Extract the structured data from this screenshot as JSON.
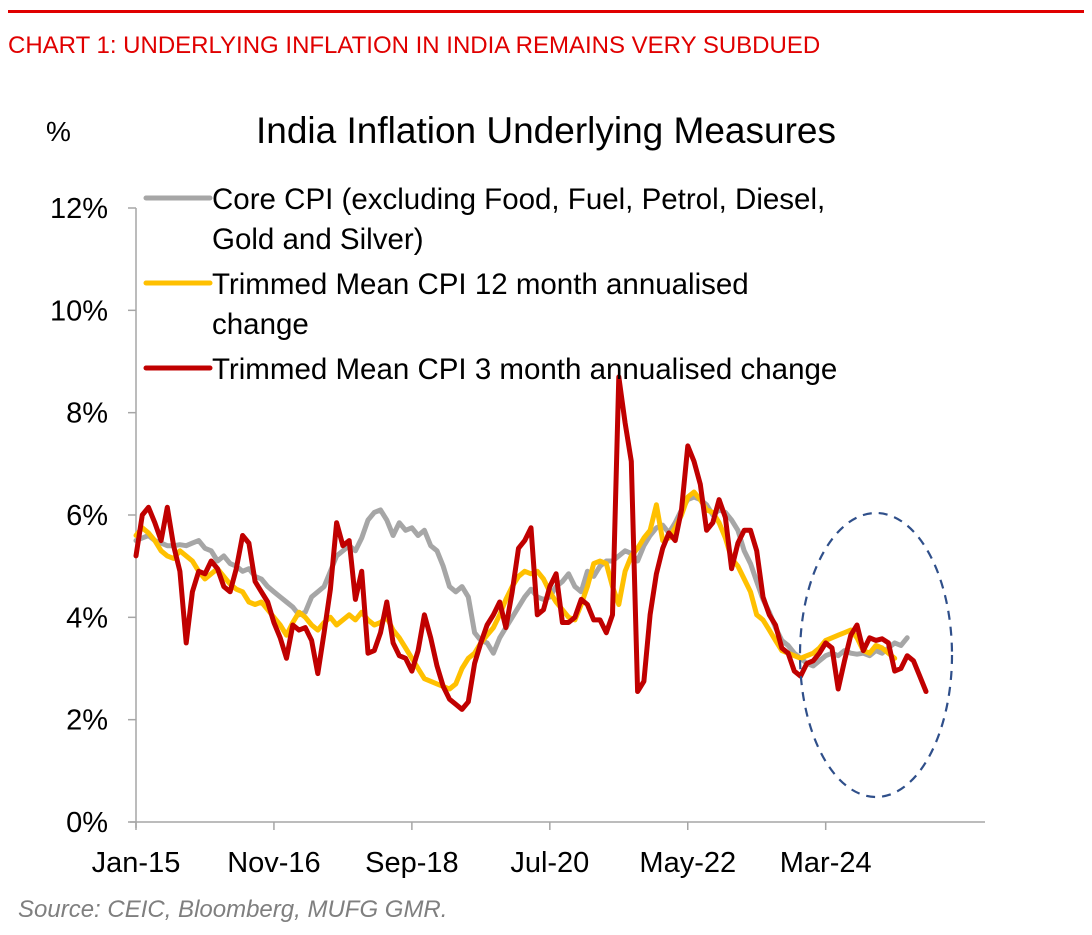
{
  "header": {
    "chart_heading": "CHART 1: UNDERLYING INFLATION IN INDIA REMAINS VERY SUBDUED",
    "accent_color": "#e00000"
  },
  "footer": {
    "source": "Source: CEIC, Bloomberg, MUFG GMR."
  },
  "chart_data": {
    "type": "line",
    "title": "India Inflation Underlying Measures",
    "ylabel": "%",
    "xlabel": "",
    "ylim": [
      0,
      12
    ],
    "yticks": [
      0,
      2,
      4,
      6,
      8,
      10,
      12
    ],
    "ytick_labels": [
      "0%",
      "2%",
      "4%",
      "6%",
      "8%",
      "10%",
      "12%"
    ],
    "x_start": "Jan-15",
    "x_frequency": "monthly",
    "xticks": [
      "Jan-15",
      "Nov-16",
      "Sep-18",
      "Jul-20",
      "May-22",
      "Mar-24"
    ],
    "xtick_index": [
      0,
      22,
      44,
      66,
      88,
      110
    ],
    "grid": false,
    "legend_position": "top-left",
    "annotation": "dashed ellipse highlighting 2024-2025 period",
    "annotation_color": "#2f4f8a",
    "series": [
      {
        "name": "Core CPI (excluding Food, Fuel, Petrol, Diesel, Gold and Silver)",
        "legend_lines": [
          "Core CPI (excluding Food, Fuel, Petrol, Diesel,",
          "Gold and Silver)"
        ],
        "color": "#a6a6a6",
        "values": [
          5.5,
          5.55,
          5.6,
          5.5,
          5.45,
          5.4,
          5.4,
          5.42,
          5.4,
          5.45,
          5.5,
          5.35,
          5.3,
          5.1,
          5.2,
          5.05,
          5.0,
          4.9,
          4.95,
          4.8,
          4.75,
          4.6,
          4.5,
          4.4,
          4.3,
          4.2,
          4.05,
          4.1,
          4.4,
          4.5,
          4.6,
          4.9,
          5.2,
          5.3,
          5.4,
          5.3,
          5.55,
          5.9,
          6.05,
          6.1,
          5.9,
          5.6,
          5.85,
          5.7,
          5.75,
          5.6,
          5.7,
          5.4,
          5.3,
          5.0,
          4.6,
          4.5,
          4.6,
          4.4,
          3.7,
          3.55,
          3.5,
          3.3,
          3.6,
          3.8,
          4.0,
          4.2,
          4.4,
          4.55,
          4.4,
          4.35,
          4.4,
          4.6,
          4.7,
          4.85,
          4.6,
          4.5,
          4.9,
          4.8,
          5.0,
          5.1,
          5.1,
          5.2,
          5.3,
          5.25,
          5.1,
          5.4,
          5.6,
          5.75,
          5.8,
          5.65,
          5.85,
          6.1,
          6.3,
          6.35,
          6.3,
          6.2,
          6.0,
          6.1,
          6.05,
          5.9,
          5.7,
          5.3,
          5.05,
          4.7,
          4.35,
          4.1,
          3.8,
          3.55,
          3.45,
          3.3,
          3.2,
          3.1,
          3.05,
          3.15,
          3.25,
          3.3,
          3.25,
          3.35,
          3.3,
          3.28,
          3.3,
          3.25,
          3.35,
          3.3,
          3.4,
          3.5,
          3.45,
          3.6
        ]
      },
      {
        "name": "Trimmed Mean CPI 12 month annualised change",
        "legend_lines": [
          "Trimmed Mean CPI 12 month annualised",
          "change"
        ],
        "color": "#ffc000",
        "values": [
          5.6,
          5.75,
          5.65,
          5.5,
          5.3,
          5.2,
          5.15,
          5.3,
          5.2,
          5.1,
          4.9,
          4.75,
          4.85,
          4.95,
          4.8,
          4.65,
          4.55,
          4.5,
          4.3,
          4.25,
          4.3,
          4.15,
          4.0,
          3.85,
          3.65,
          3.9,
          4.1,
          4.0,
          3.85,
          3.75,
          3.9,
          4.0,
          3.85,
          3.95,
          4.05,
          3.95,
          4.1,
          3.95,
          3.85,
          3.9,
          4.0,
          3.75,
          3.6,
          3.4,
          3.2,
          3.0,
          2.8,
          2.75,
          2.7,
          2.65,
          2.6,
          2.7,
          3.0,
          3.2,
          3.3,
          3.5,
          3.65,
          3.8,
          4.05,
          4.35,
          4.6,
          4.8,
          4.9,
          4.85,
          4.9,
          4.75,
          4.5,
          4.3,
          4.15,
          4.0,
          3.95,
          4.25,
          4.6,
          5.05,
          5.1,
          5.05,
          4.6,
          4.25,
          4.9,
          5.2,
          5.35,
          5.55,
          5.7,
          6.2,
          5.5,
          5.55,
          5.75,
          6.0,
          6.35,
          6.45,
          6.3,
          6.1,
          6.05,
          5.85,
          5.55,
          5.15,
          5.0,
          4.75,
          4.5,
          4.05,
          3.95,
          3.75,
          3.55,
          3.35,
          3.3,
          3.25,
          3.2,
          3.25,
          3.3,
          3.4,
          3.55,
          3.6,
          3.65,
          3.7,
          3.75,
          3.6,
          3.35,
          3.3,
          3.45,
          3.4,
          3.3,
          3.2
        ]
      },
      {
        "name": "Trimmed Mean CPI 3 month annualised change",
        "legend_lines": [
          "Trimmed Mean CPI 3 month annualised change"
        ],
        "color": "#c00000",
        "values": [
          5.2,
          6.0,
          6.15,
          5.85,
          5.5,
          6.15,
          5.4,
          4.9,
          3.5,
          4.5,
          4.9,
          4.85,
          5.1,
          4.95,
          4.6,
          4.5,
          4.95,
          5.6,
          5.45,
          4.7,
          4.5,
          4.3,
          3.9,
          3.6,
          3.2,
          3.85,
          3.75,
          3.8,
          3.55,
          2.9,
          3.7,
          4.55,
          5.85,
          5.4,
          5.5,
          4.35,
          4.9,
          3.3,
          3.35,
          3.7,
          4.3,
          3.5,
          3.25,
          3.2,
          2.95,
          3.35,
          4.05,
          3.6,
          3.05,
          2.65,
          2.4,
          2.3,
          2.2,
          2.35,
          3.1,
          3.5,
          3.85,
          4.05,
          4.3,
          3.8,
          4.5,
          5.35,
          5.5,
          5.75,
          4.05,
          4.15,
          4.6,
          4.85,
          3.9,
          3.9,
          4.0,
          4.35,
          4.25,
          3.95,
          3.95,
          3.7,
          4.05,
          8.7,
          7.8,
          7.05,
          2.55,
          2.75,
          4.05,
          4.85,
          5.35,
          5.65,
          5.5,
          6.1,
          7.35,
          7.05,
          6.6,
          5.7,
          5.85,
          6.3,
          5.95,
          4.95,
          5.45,
          5.7,
          5.7,
          5.3,
          4.4,
          4.05,
          3.85,
          3.4,
          3.3,
          2.95,
          2.85,
          3.1,
          3.15,
          3.3,
          3.5,
          3.4,
          2.6,
          3.15,
          3.65,
          3.85,
          3.35,
          3.6,
          3.55,
          3.58,
          3.5,
          2.95,
          3.0,
          3.25,
          3.15,
          2.85,
          2.55
        ]
      }
    ]
  }
}
